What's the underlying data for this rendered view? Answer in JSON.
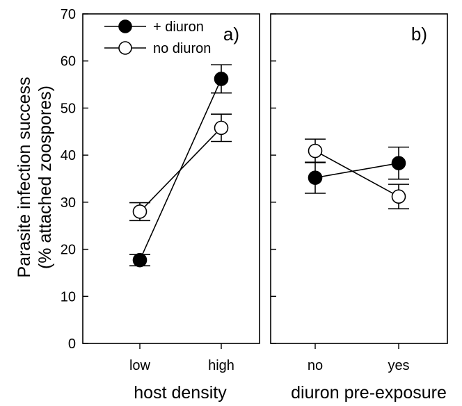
{
  "chart_data": {
    "type": "line",
    "ylabel": "Parasite infection success",
    "ylabel_sub": "(% attached zoospores)",
    "ylim": [
      0,
      70
    ],
    "yticks": [
      0,
      10,
      20,
      30,
      40,
      50,
      60,
      70
    ],
    "legend": {
      "position": "top-left",
      "entries": [
        {
          "label": "+ diuron",
          "fill": "#000000"
        },
        {
          "label": "no diuron",
          "fill": "#ffffff"
        }
      ]
    },
    "panels": [
      {
        "label": "a)",
        "xlabel": "host density",
        "categories": [
          "low",
          "high"
        ],
        "series": [
          {
            "name": "+ diuron",
            "values": [
              17.7,
              56.2
            ],
            "errors": [
              1.2,
              3.0
            ]
          },
          {
            "name": "no diuron",
            "values": [
              28.0,
              45.8
            ],
            "errors": [
              1.9,
              2.9
            ]
          }
        ]
      },
      {
        "label": "b)",
        "xlabel": "diuron pre-exposure",
        "categories": [
          "no",
          "yes"
        ],
        "series": [
          {
            "name": "+ diuron",
            "values": [
              35.2,
              38.3
            ],
            "errors": [
              3.3,
              3.4
            ]
          },
          {
            "name": "no diuron",
            "values": [
              40.9,
              31.2
            ],
            "errors": [
              2.5,
              2.6
            ]
          }
        ]
      }
    ],
    "colors": {
      "marker_edge": "#000000",
      "filled": "#000000",
      "open": "#ffffff"
    }
  }
}
